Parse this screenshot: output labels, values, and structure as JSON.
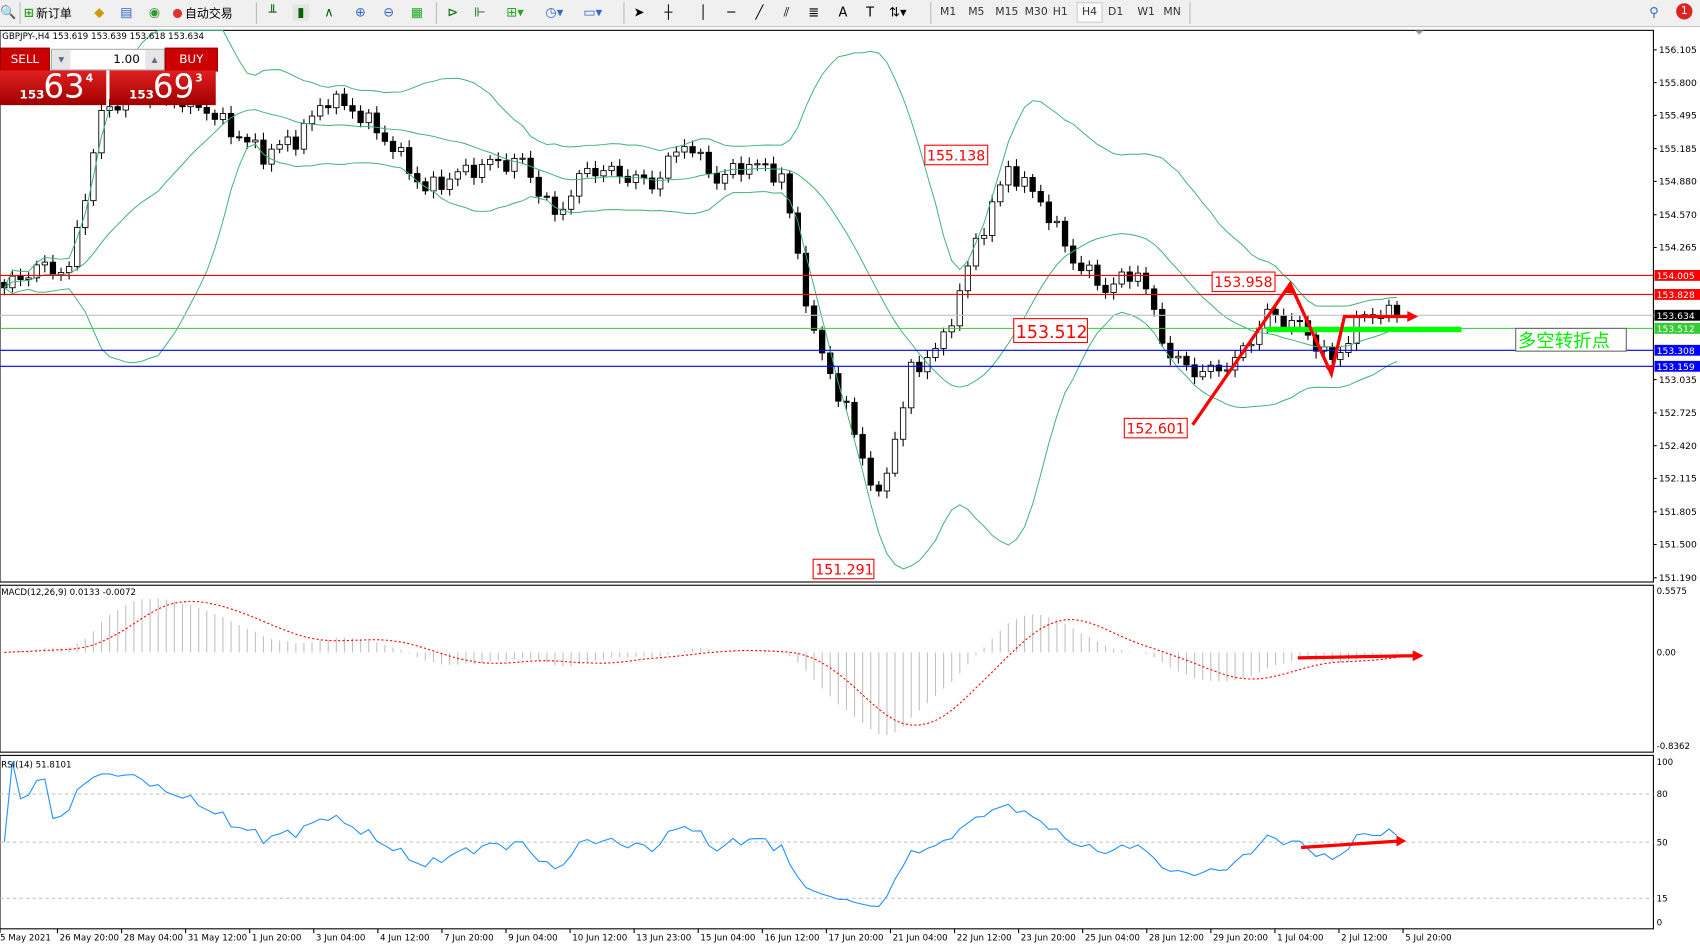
{
  "toolbar": {
    "new_order_label": "新订单",
    "auto_trade_label": "自动交易",
    "timeframes": [
      "M1",
      "M5",
      "M15",
      "M30",
      "H1",
      "H4",
      "D1",
      "W1",
      "MN"
    ],
    "selected_timeframe": "H4",
    "notification_count": "1"
  },
  "chart": {
    "header": "GBPJPY-,H4  153.619 153.639 153.618 153.634",
    "trade_panel": {
      "sell_label": "SELL",
      "buy_label": "BUY",
      "lot": "1.00",
      "sell_price": {
        "small": "153",
        "big": "63",
        "pip": "4"
      },
      "buy_price": {
        "small": "153",
        "big": "69",
        "pip": "3"
      }
    },
    "price_axis": [
      "156.105",
      "155.800",
      "155.495",
      "155.185",
      "154.880",
      "154.570",
      "154.265",
      "153.035",
      "152.725",
      "152.420",
      "152.115",
      "151.805",
      "151.500",
      "151.190"
    ],
    "hlines": [
      {
        "price": "154.005",
        "color": "#ff0000"
      },
      {
        "price": "153.828",
        "color": "#ff0000"
      },
      {
        "price": "153.634",
        "color": "#000000",
        "line": "#c0c0c0"
      },
      {
        "price": "153.512",
        "color": "#33cc33"
      },
      {
        "price": "153.308",
        "color": "#0000ff"
      },
      {
        "price": "153.159",
        "color": "#0000ff"
      }
    ],
    "annotations": [
      "155.138",
      "153.512",
      "153.958",
      "152.601",
      "151.291"
    ],
    "pivot_text": "多空转折点",
    "price_path": [
      153.89,
      154.08,
      154.05,
      155.5,
      155.75,
      155.65,
      155.6,
      155.36,
      155.13,
      155.28,
      155.66,
      155.5,
      155.2,
      154.8,
      154.95,
      155.05,
      155.06,
      154.55,
      155.0,
      154.95,
      154.85,
      155.25,
      154.9,
      155.05,
      154.93,
      153.44,
      152.74,
      151.9,
      153.1,
      153.4,
      154.3,
      155.0,
      154.7,
      154.15,
      153.88,
      154.05,
      153.24,
      153.09,
      153.2,
      153.64,
      153.54,
      153.2,
      153.65,
      153.634
    ],
    "colors": {
      "bands": "#3cb371",
      "up": "#ffffff",
      "down": "#000000",
      "arrow": "#ff0000",
      "pivot": "#00ff00"
    }
  },
  "macd": {
    "label": "MACD(12,26,9) 0.0133 -0.0072",
    "axis": [
      "0.5575",
      "0.00",
      "-0.8362"
    ],
    "colors": {
      "hist": "#c0c0c0",
      "signal": "#ff0000"
    }
  },
  "rsi": {
    "label": "RSI(14) 51.8101",
    "axis": [
      "100",
      "80",
      "50",
      "15",
      "0"
    ],
    "color": "#1e90ff"
  },
  "date_axis": [
    "5 May 2021",
    "26 May 20:00",
    "28 May 04:00",
    "31 May 12:00",
    "1 Jun 20:00",
    "3 Jun 04:00",
    "4 Jun 12:00",
    "7 Jun 20:00",
    "9 Jun 04:00",
    "10 Jun 12:00",
    "13 Jun 23:00",
    "15 Jun 04:00",
    "16 Jun 12:00",
    "17 Jun 20:00",
    "21 Jun 04:00",
    "22 Jun 12:00",
    "23 Jun 20:00",
    "25 Jun 04:00",
    "28 Jun 12:00",
    "29 Jun 20:00",
    "1 Jul 04:00",
    "2 Jul 12:00",
    "5 Jul 20:00"
  ]
}
